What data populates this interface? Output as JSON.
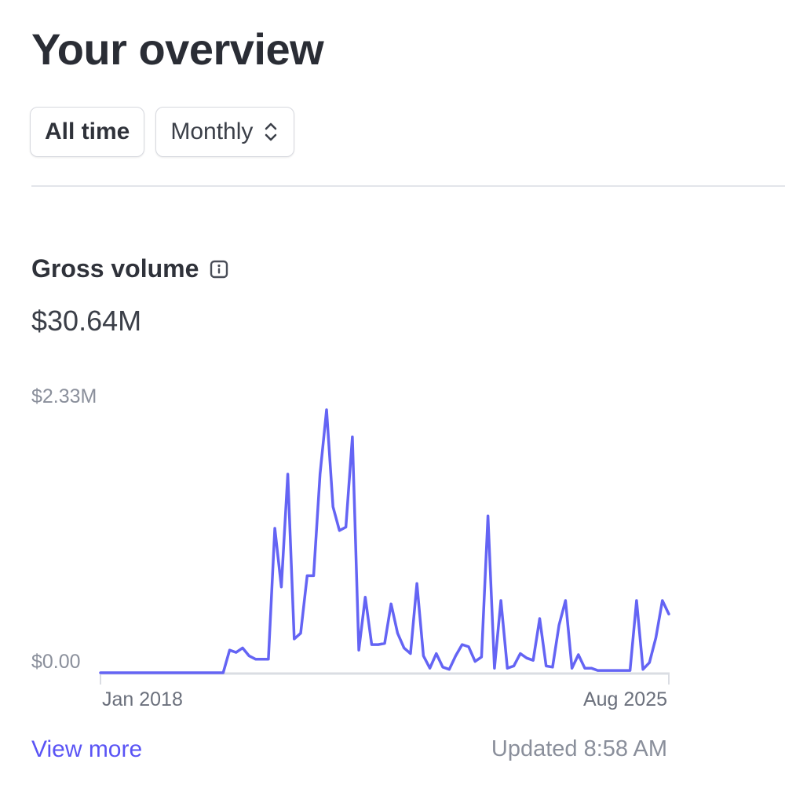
{
  "header": {
    "title": "Your overview"
  },
  "filters": {
    "range_label": "All time",
    "interval_label": "Monthly"
  },
  "metric": {
    "label": "Gross volume",
    "value": "$30.64M",
    "info_icon": "info-icon"
  },
  "chart_data": {
    "type": "line",
    "series": [
      {
        "values": [
          0,
          0,
          0,
          0,
          0,
          0,
          0,
          0,
          0,
          0,
          0,
          0,
          0,
          0,
          0,
          0,
          0,
          0,
          0,
          0,
          0.2,
          0.18,
          0.22,
          0.15,
          0.12,
          0.12,
          0.12,
          1.28,
          0.76,
          1.76,
          0.3,
          0.35,
          0.86,
          0.86,
          1.76,
          2.33,
          1.47,
          1.26,
          1.29,
          2.09,
          0.2,
          0.67,
          0.25,
          0.25,
          0.26,
          0.61,
          0.35,
          0.22,
          0.17,
          0.79,
          0.15,
          0.04,
          0.17,
          0.05,
          0.03,
          0.15,
          0.25,
          0.23,
          0.1,
          0.14,
          1.39,
          0.04,
          0.64,
          0.04,
          0.06,
          0.17,
          0.13,
          0.11,
          0.48,
          0.06,
          0.05,
          0.42,
          0.64,
          0.04,
          0.16,
          0.04,
          0.04,
          0.02,
          0.02,
          0.02,
          0.02,
          0.02,
          0.02,
          0.64,
          0.03,
          0.09,
          0.31,
          0.64,
          0.52
        ],
        "color": "#6464f4"
      }
    ],
    "y_max_label": "$2.33M",
    "y_min_label": "$0.00",
    "x_start_label": "Jan 2018",
    "x_end_label": "Aug 2025",
    "ylim": [
      0,
      2.33
    ],
    "grid": false
  },
  "footer": {
    "view_more": "View more",
    "updated": "Updated 8:58 AM"
  },
  "colors": {
    "accent": "#5a54f5",
    "line": "#6464f4",
    "baseline": "#dadde3",
    "muted_text": "#8a8f9b"
  }
}
